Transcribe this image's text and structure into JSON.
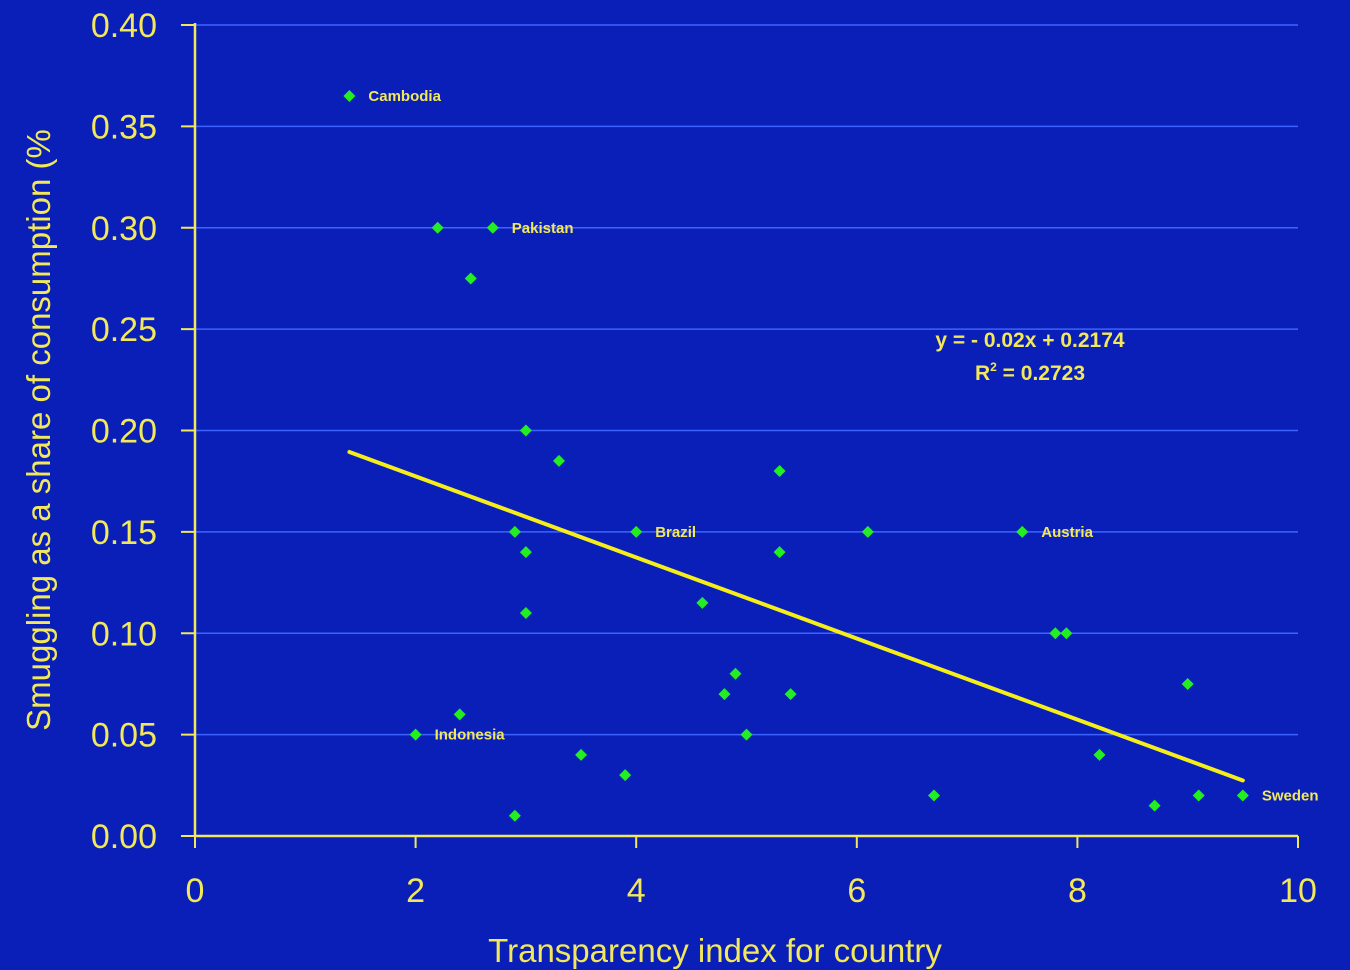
{
  "chart_data": {
    "type": "scatter",
    "xlabel": "Transparency index for country",
    "ylabel": "Smuggling as a share of consumption (%",
    "xlim": [
      0,
      10
    ],
    "ylim": [
      0,
      0.4
    ],
    "x_ticks": [
      "0",
      "2",
      "4",
      "6",
      "8",
      "10"
    ],
    "y_ticks": [
      "0.00",
      "0.05",
      "0.10",
      "0.15",
      "0.20",
      "0.25",
      "0.30",
      "0.35",
      "0.40"
    ],
    "grid": "horizontal",
    "points": [
      {
        "x": 1.4,
        "y": 0.365,
        "label": "Cambodia"
      },
      {
        "x": 2.2,
        "y": 0.3
      },
      {
        "x": 2.7,
        "y": 0.3,
        "label": "Pakistan"
      },
      {
        "x": 2.5,
        "y": 0.275
      },
      {
        "x": 3.0,
        "y": 0.2
      },
      {
        "x": 3.3,
        "y": 0.185
      },
      {
        "x": 2.9,
        "y": 0.15
      },
      {
        "x": 3.0,
        "y": 0.14
      },
      {
        "x": 3.0,
        "y": 0.11
      },
      {
        "x": 4.0,
        "y": 0.15,
        "label": "Brazil"
      },
      {
        "x": 4.6,
        "y": 0.115
      },
      {
        "x": 5.3,
        "y": 0.18
      },
      {
        "x": 5.3,
        "y": 0.14
      },
      {
        "x": 6.1,
        "y": 0.15
      },
      {
        "x": 7.5,
        "y": 0.15,
        "label": "Austria"
      },
      {
        "x": 4.9,
        "y": 0.08
      },
      {
        "x": 4.8,
        "y": 0.07
      },
      {
        "x": 5.4,
        "y": 0.07
      },
      {
        "x": 5.0,
        "y": 0.05
      },
      {
        "x": 2.0,
        "y": 0.05,
        "label": "Indonesia"
      },
      {
        "x": 2.4,
        "y": 0.06
      },
      {
        "x": 3.5,
        "y": 0.04
      },
      {
        "x": 3.9,
        "y": 0.03
      },
      {
        "x": 2.9,
        "y": 0.01
      },
      {
        "x": 6.7,
        "y": 0.02
      },
      {
        "x": 7.8,
        "y": 0.1
      },
      {
        "x": 7.9,
        "y": 0.1
      },
      {
        "x": 8.2,
        "y": 0.04
      },
      {
        "x": 8.7,
        "y": 0.015
      },
      {
        "x": 9.0,
        "y": 0.075
      },
      {
        "x": 9.1,
        "y": 0.02
      },
      {
        "x": 9.5,
        "y": 0.02,
        "label": "Sweden"
      }
    ],
    "trendline": {
      "x_start": 1.4,
      "x_end": 9.5,
      "slope": -0.02,
      "intercept": 0.2174,
      "equation": "y = - 0.02x + 0.2174",
      "r2_prefix": "R",
      "r2_sup": "2",
      "r2_value": " = 0.2723"
    },
    "colors": {
      "background": "#0a1fb8",
      "axis": "#f2e85a",
      "grid": "#3d63ff",
      "points": "#22ee22",
      "trendline": "#f5ee1a",
      "text": "#f2e85a"
    }
  }
}
